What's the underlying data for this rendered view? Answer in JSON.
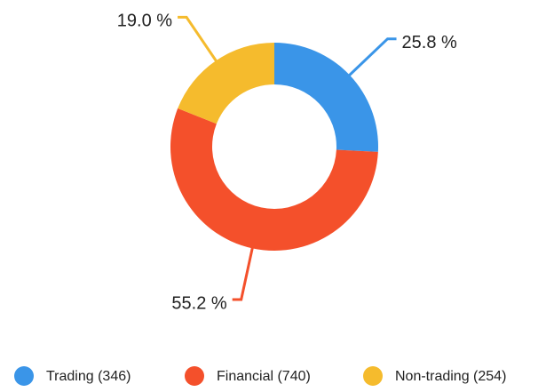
{
  "chart_data": {
    "type": "donut",
    "categories": [
      "Trading (346)",
      "Financial (740)",
      "Non-trading (254)"
    ],
    "values": [
      25.8,
      55.2,
      19.0
    ],
    "value_labels": [
      "25.8 %",
      "55.2 %",
      "19.0 %"
    ],
    "colors": [
      "#3a95e8",
      "#f4502b",
      "#f5bb2d"
    ],
    "legend": "bottom"
  }
}
